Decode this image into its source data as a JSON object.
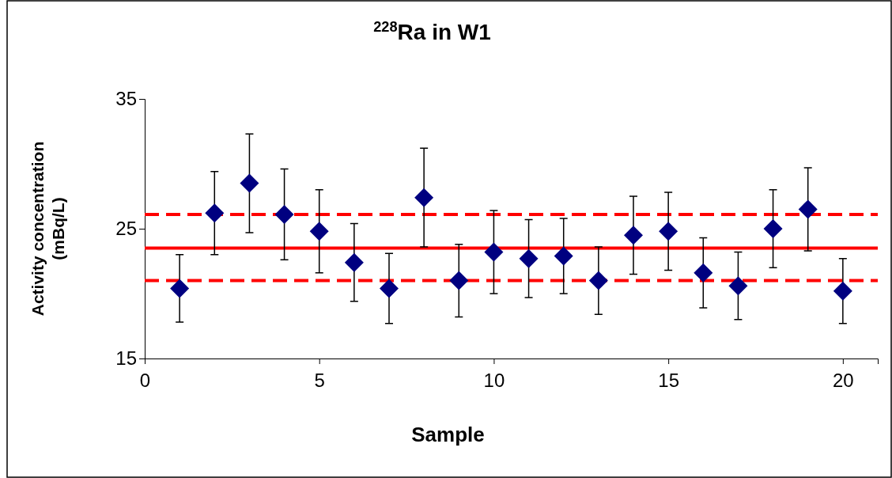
{
  "chart_data": {
    "type": "scatter",
    "title": "$^{228}$Ra in W1",
    "xlabel": "Sample",
    "ylabel": "Activity concentration\n(mBq/L)",
    "x": [
      1,
      2,
      3,
      4,
      5,
      6,
      7,
      8,
      9,
      10,
      11,
      12,
      13,
      14,
      15,
      16,
      17,
      18,
      19,
      20
    ],
    "values": [
      20.4,
      26.2,
      28.5,
      26.1,
      24.8,
      22.4,
      20.4,
      27.4,
      21.0,
      23.2,
      22.7,
      22.9,
      21.0,
      24.5,
      24.8,
      21.6,
      20.6,
      25.0,
      26.5,
      20.2
    ],
    "errors": [
      2.6,
      3.2,
      3.8,
      3.5,
      3.2,
      3.0,
      2.7,
      3.8,
      2.8,
      3.2,
      3.0,
      2.9,
      2.6,
      3.0,
      3.0,
      2.7,
      2.6,
      3.0,
      3.2,
      2.5
    ],
    "color": "#000080",
    "marker": "diamond",
    "xlim": [
      0,
      21
    ],
    "xticks": [
      0,
      5,
      10,
      15,
      20
    ],
    "ylim": [
      15,
      35
    ],
    "yticks": [
      15,
      25,
      35
    ],
    "ref_lines": [
      {
        "axis": "y",
        "value": 26.1,
        "color": "#ff0000",
        "line_style": "dashed"
      },
      {
        "axis": "y",
        "value": 23.5,
        "color": "#ff0000",
        "line_style": "solid"
      },
      {
        "axis": "y",
        "value": 21.0,
        "color": "#ff0000",
        "line_style": "dashed"
      }
    ],
    "grid": false
  }
}
